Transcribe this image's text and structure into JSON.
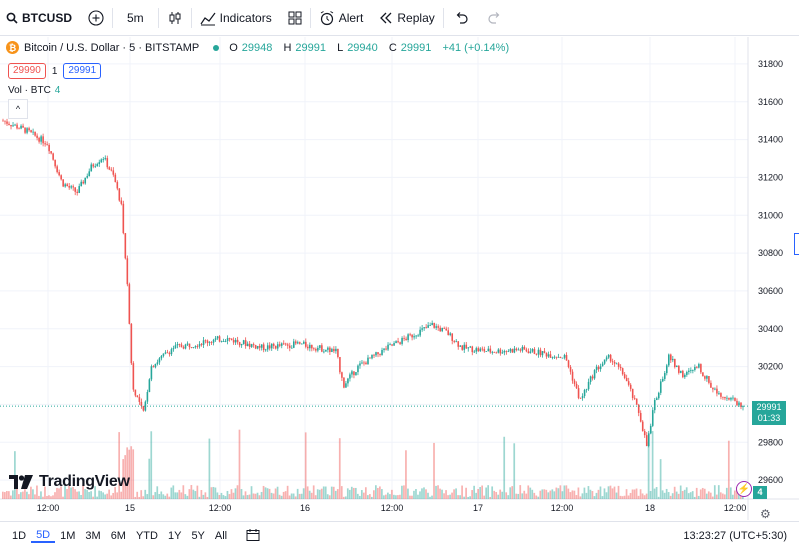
{
  "toolbar": {
    "symbol": "BTCUSD",
    "interval": "5m",
    "indicators_label": "Indicators",
    "alert_label": "Alert",
    "replay_label": "Replay"
  },
  "legend": {
    "title": "Bitcoin / U.S. Dollar · 5 · BITSTAMP",
    "open_key": "O",
    "open": "29948",
    "high_key": "H",
    "high": "29991",
    "low_key": "L",
    "low": "29940",
    "close_key": "C",
    "close": "29991",
    "change": "+41 (+0.14%)"
  },
  "quotes": {
    "sell": "29990",
    "spread": "1",
    "buy": "29991"
  },
  "volume_legend": {
    "label": "Vol · BTC",
    "value": "4"
  },
  "brand": {
    "name": "TradingView"
  },
  "price_tag": {
    "price": "29991",
    "countdown": "01:33"
  },
  "badge_count": "4",
  "bottombar": {
    "ranges": [
      "1D",
      "5D",
      "1M",
      "3M",
      "6M",
      "YTD",
      "1Y",
      "5Y",
      "All"
    ],
    "active_range": "5D",
    "clock": "13:23:27 (UTC+5:30)"
  },
  "colors": {
    "up": "#26a69a",
    "down": "#ef5350",
    "accent": "#2962ff"
  },
  "chart_data": {
    "type": "candlestick",
    "ylim": [
      29500,
      31900
    ],
    "y_ticks": [
      29600,
      29800,
      30000,
      30200,
      30400,
      30600,
      30800,
      31000,
      31200,
      31400,
      31600,
      31800
    ],
    "x_ticks": [
      "12:00",
      "15",
      "12:00",
      "16",
      "12:00",
      "17",
      "12:00",
      "18",
      "12:00"
    ],
    "last_price": 29991,
    "price_path": [
      [
        0,
        31500
      ],
      [
        0.03,
        31450
      ],
      [
        0.06,
        31380
      ],
      [
        0.08,
        31170
      ],
      [
        0.1,
        31120
      ],
      [
        0.12,
        31260
      ],
      [
        0.135,
        31310
      ],
      [
        0.15,
        31200
      ],
      [
        0.16,
        31050
      ],
      [
        0.165,
        30800
      ],
      [
        0.17,
        30500
      ],
      [
        0.175,
        30100
      ],
      [
        0.18,
        30050
      ],
      [
        0.19,
        29950
      ],
      [
        0.2,
        30200
      ],
      [
        0.23,
        30300
      ],
      [
        0.3,
        30350
      ],
      [
        0.35,
        30300
      ],
      [
        0.4,
        30320
      ],
      [
        0.45,
        30280
      ],
      [
        0.46,
        30100
      ],
      [
        0.48,
        30200
      ],
      [
        0.52,
        30300
      ],
      [
        0.58,
        30420
      ],
      [
        0.6,
        30380
      ],
      [
        0.62,
        30300
      ],
      [
        0.66,
        30280
      ],
      [
        0.7,
        30290
      ],
      [
        0.76,
        30250
      ],
      [
        0.78,
        30020
      ],
      [
        0.8,
        30180
      ],
      [
        0.82,
        30250
      ],
      [
        0.84,
        30150
      ],
      [
        0.86,
        29950
      ],
      [
        0.87,
        29780
      ],
      [
        0.88,
        30000
      ],
      [
        0.9,
        30250
      ],
      [
        0.92,
        30150
      ],
      [
        0.94,
        30200
      ],
      [
        0.96,
        30080
      ],
      [
        1.0,
        29991
      ]
    ]
  }
}
